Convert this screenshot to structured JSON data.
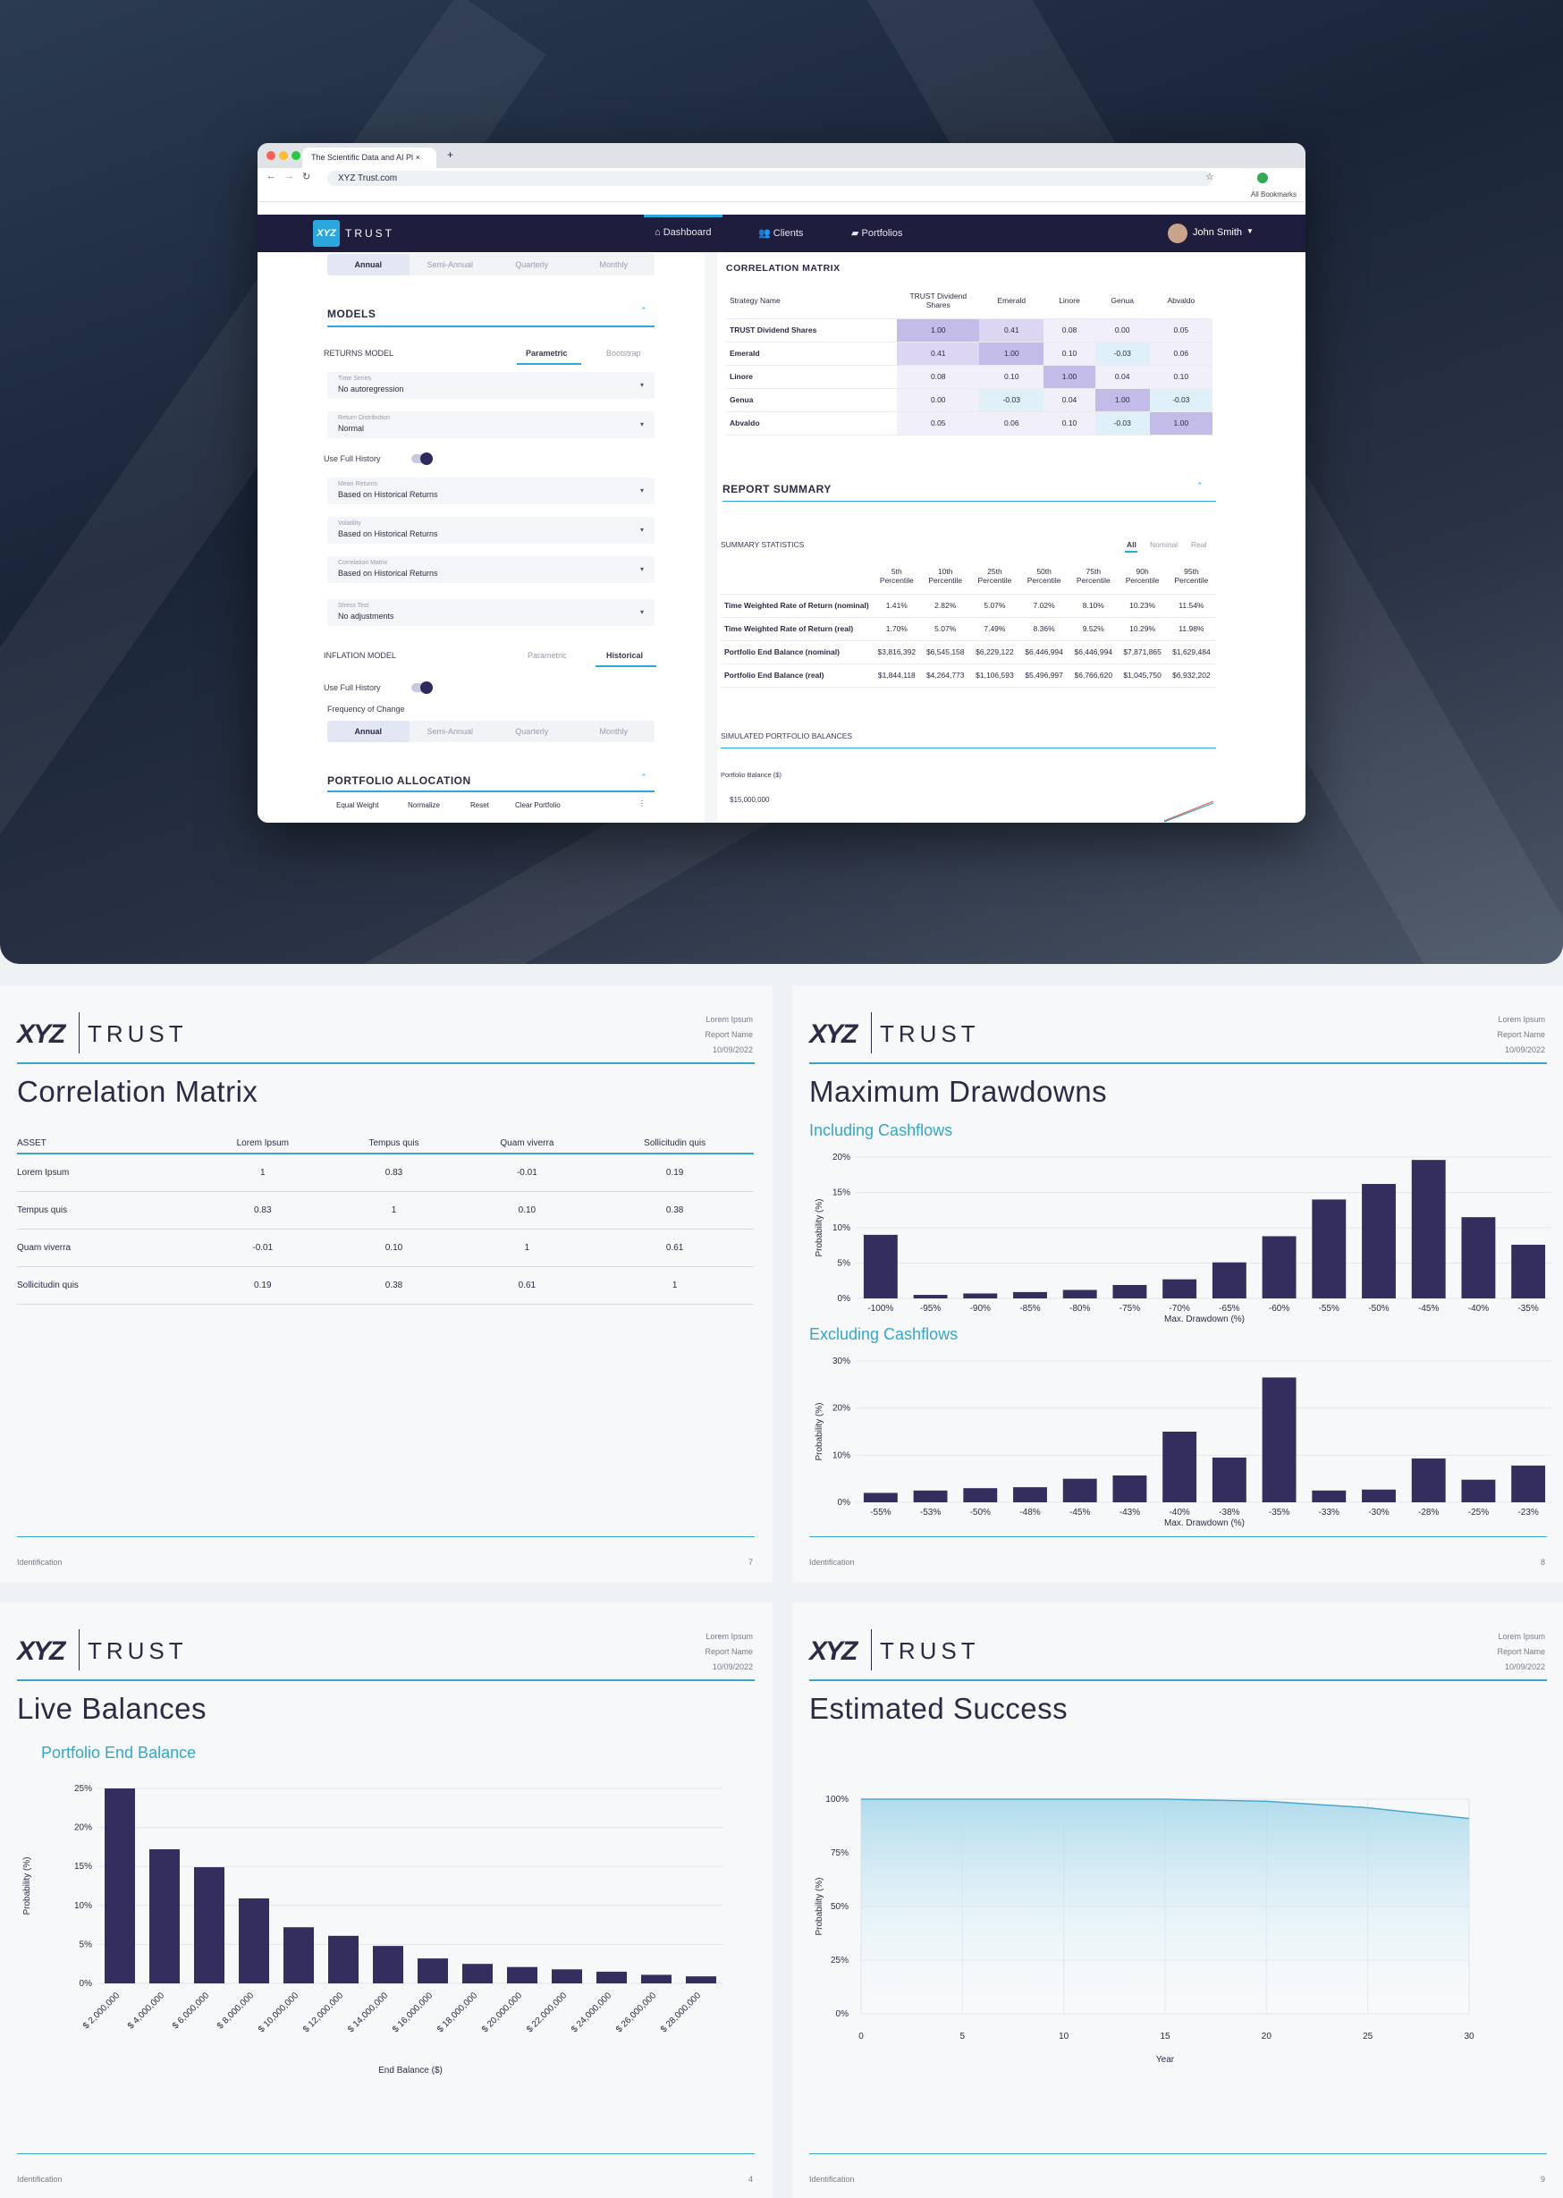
{
  "browser": {
    "tab_title": "The Scientific Data and AI Pl",
    "new_tab": "+",
    "url": "XYZ Trust.com",
    "bookmarks": "All Bookmarks"
  },
  "app": {
    "logo": "XYZ",
    "brand": "TRUST",
    "nav": [
      {
        "label": "Dashboard"
      },
      {
        "label": "Clients"
      },
      {
        "label": "Portfolios"
      }
    ],
    "user": "John Smith"
  },
  "left": {
    "freq_top": [
      "Annual",
      "Semi-Annual",
      "Quarterly",
      "Monthly"
    ],
    "models_title": "MODELS",
    "returns_model": "RETURNS MODEL",
    "returns_tabs": [
      "Parametric",
      "Bootstrap"
    ],
    "dropdowns": [
      {
        "k": "Time Series",
        "v": "No autoregression"
      },
      {
        "k": "Return Distribution",
        "v": "Normal"
      },
      {
        "k": "Mean Returns",
        "v": "Based on Historical Returns"
      },
      {
        "k": "Volatility",
        "v": "Based on Historical Returns"
      },
      {
        "k": "Correlation Matrix",
        "v": "Based on Historical Returns"
      },
      {
        "k": "Stress Test",
        "v": "No adjustments"
      }
    ],
    "use_full_history": "Use Full History",
    "inflation_model": "INFLATION MODEL",
    "inflation_tabs": [
      "Parametric",
      "Historical"
    ],
    "freq_change": "Frequency of Change",
    "freq_bottom": [
      "Annual",
      "Semi-Annual",
      "Quarterly",
      "Monthly"
    ],
    "portfolio_alloc": "PORTFOLIO ALLOCATION",
    "alloc_actions": [
      "Equal Weight",
      "Normalize",
      "Reset",
      "Clear Portfolio"
    ]
  },
  "right": {
    "corr_title": "CORRELATION MATRIX",
    "corr_headers": [
      "Strategy Name",
      "TRUST Dividend Shares",
      "Emerald",
      "Linore",
      "Genua",
      "Abvaldo"
    ],
    "corr_rows": [
      [
        "TRUST Dividend Shares",
        "1.00",
        "0.41",
        "0.08",
        "0.00",
        "0.05"
      ],
      [
        "Emerald",
        "0.41",
        "1.00",
        "0.10",
        "-0.03",
        "0.06"
      ],
      [
        "Linore",
        "0.08",
        "0.10",
        "1.00",
        "0.04",
        "0.10"
      ],
      [
        "Genua",
        "0.00",
        "-0.03",
        "0.04",
        "1.00",
        "-0.03"
      ],
      [
        "Abvaldo",
        "0.05",
        "0.06",
        "0.10",
        "-0.03",
        "1.00"
      ]
    ],
    "report_summary": "REPORT SUMMARY",
    "summary_stats": "SUMMARY STATISTICS",
    "stat_tabs": [
      "All",
      "Nominal",
      "Real"
    ],
    "stat_headers": [
      "",
      "5th Percentile",
      "10th Percentile",
      "25th Percentile",
      "50th Percentile",
      "75th Percentile",
      "90h Percentile",
      "95th Percentile"
    ],
    "stat_rows": [
      [
        "Time Weighted Rate of Return (nominal)",
        "1.41%",
        "2.82%",
        "5.07%",
        "7.02%",
        "8.10%",
        "10.23%",
        "11.54%"
      ],
      [
        "Time Weighted Rate of Return (real)",
        "1.70%",
        "5.07%",
        "7.49%",
        "8.36%",
        "9.52%",
        "10.29%",
        "11.98%"
      ],
      [
        "Portfolio End Balance (nominal)",
        "$3,816,392",
        "$6,545,158",
        "$6,229,122",
        "$6,446,994",
        "$6,446,994",
        "$7,871,865",
        "$1,629,484"
      ],
      [
        "Portfolio End Balance (real)",
        "$1,844,118",
        "$4,264,773",
        "$1,106,593",
        "$5,496,997",
        "$6,766,620",
        "$1,045,750",
        "$6,932,202"
      ]
    ],
    "sim_title": "SIMULATED PORTFOLIO BALANCES",
    "sim_ylabel": "Portfolio Balance ($)",
    "sim_tick": "$15,000,000"
  },
  "page_common": {
    "logo": "XYZ",
    "brand": "TRUST",
    "meta": [
      "Lorem Ipsum",
      "Report Name",
      "10/09/2022"
    ],
    "footer_left": "Identification"
  },
  "page7": {
    "title": "Correlation Matrix",
    "headers": [
      "ASSET",
      "Lorem Ipsum",
      "Tempus quis",
      "Quam viverra",
      "Sollicitudin quis"
    ],
    "rows": [
      [
        "Lorem Ipsum",
        "1",
        "0.83",
        "-0.01",
        "0.19"
      ],
      [
        "Tempus quis",
        "0.83",
        "1",
        "0.10",
        "0.38"
      ],
      [
        "Quam viverra",
        "-0.01",
        "0.10",
        "1",
        "0.61"
      ],
      [
        "Sollicitudin quis",
        "0.19",
        "0.38",
        "0.61",
        "1"
      ]
    ],
    "page_num": "7"
  },
  "page8": {
    "title": "Maximum Drawdowns",
    "page_num": "8"
  },
  "page4": {
    "title": "Live Balances",
    "page_num": "4"
  },
  "page9": {
    "title": "Estimated Success",
    "page_num": "9"
  },
  "colors": {
    "bar": "#332e5e",
    "accent": "#3aa3c6",
    "nav": "#1f1d3d"
  },
  "chart_data": [
    {
      "type": "bar",
      "title": "Including Cashflows",
      "xlabel": "Max. Drawdown (%)",
      "ylabel": "Probability (%)",
      "categories": [
        "-100%",
        "-95%",
        "-90%",
        "-85%",
        "-80%",
        "-75%",
        "-70%",
        "-65%",
        "-60%",
        "-55%",
        "-50%",
        "-45%",
        "-40%",
        "-35%"
      ],
      "values": [
        9,
        0.5,
        0.7,
        0.9,
        1.2,
        1.9,
        2.7,
        5.1,
        8.8,
        14,
        16.2,
        19.6,
        11.5,
        7.6
      ],
      "ylim": [
        0,
        20
      ],
      "yticks": [
        "0%",
        "5%",
        "10%",
        "15%",
        "20%"
      ]
    },
    {
      "type": "bar",
      "title": "Excluding Cashflows",
      "xlabel": "Max. Drawdown (%)",
      "ylabel": "Probability (%)",
      "categories": [
        "-55%",
        "-53%",
        "-50%",
        "-48%",
        "-45%",
        "-43%",
        "-40%",
        "-38%",
        "-35%",
        "-33%",
        "-30%",
        "-28%",
        "-25%",
        "-23%"
      ],
      "values": [
        2,
        2.5,
        3,
        3.2,
        5,
        5.7,
        15,
        9.5,
        26.5,
        2.5,
        2.7,
        9.3,
        4.8,
        7.8
      ],
      "ylim": [
        0,
        30
      ],
      "yticks": [
        "0%",
        "10%",
        "20%",
        "30%"
      ]
    },
    {
      "type": "bar",
      "title": "Portfolio End Balance",
      "xlabel": "End Balance ($)",
      "ylabel": "Probability (%)",
      "categories": [
        "$ 2,000,000",
        "$ 4,000,000",
        "$ 6,000,000",
        "$ 8,000,000",
        "$ 10,000,000",
        "$ 12,000,000",
        "$ 14,000,000",
        "$ 16,000,000",
        "$ 18,000,000",
        "$ 20,000,000",
        "$ 22,000,000",
        "$ 24,000,000",
        "$ 26,000,000",
        "$ 28,000,000"
      ],
      "values": [
        25,
        17.2,
        14.9,
        10.9,
        7.2,
        6.1,
        4.8,
        3.2,
        2.5,
        2.1,
        1.8,
        1.5,
        1.1,
        0.9
      ],
      "ylim": [
        0,
        25
      ],
      "yticks": [
        "0%",
        "5%",
        "10%",
        "15%",
        "20%",
        "25%"
      ]
    },
    {
      "type": "area",
      "xlabel": "Year",
      "ylabel": "Probability (%)",
      "x": [
        0,
        5,
        10,
        15,
        20,
        25,
        30
      ],
      "y": [
        100,
        100,
        100,
        100,
        99,
        96,
        91
      ],
      "ylim": [
        0,
        100
      ],
      "yticks": [
        "0%",
        "25%",
        "50%",
        "75%",
        "100%"
      ],
      "xticks": [
        "0",
        "5",
        "10",
        "15",
        "20",
        "25",
        "30"
      ]
    }
  ]
}
